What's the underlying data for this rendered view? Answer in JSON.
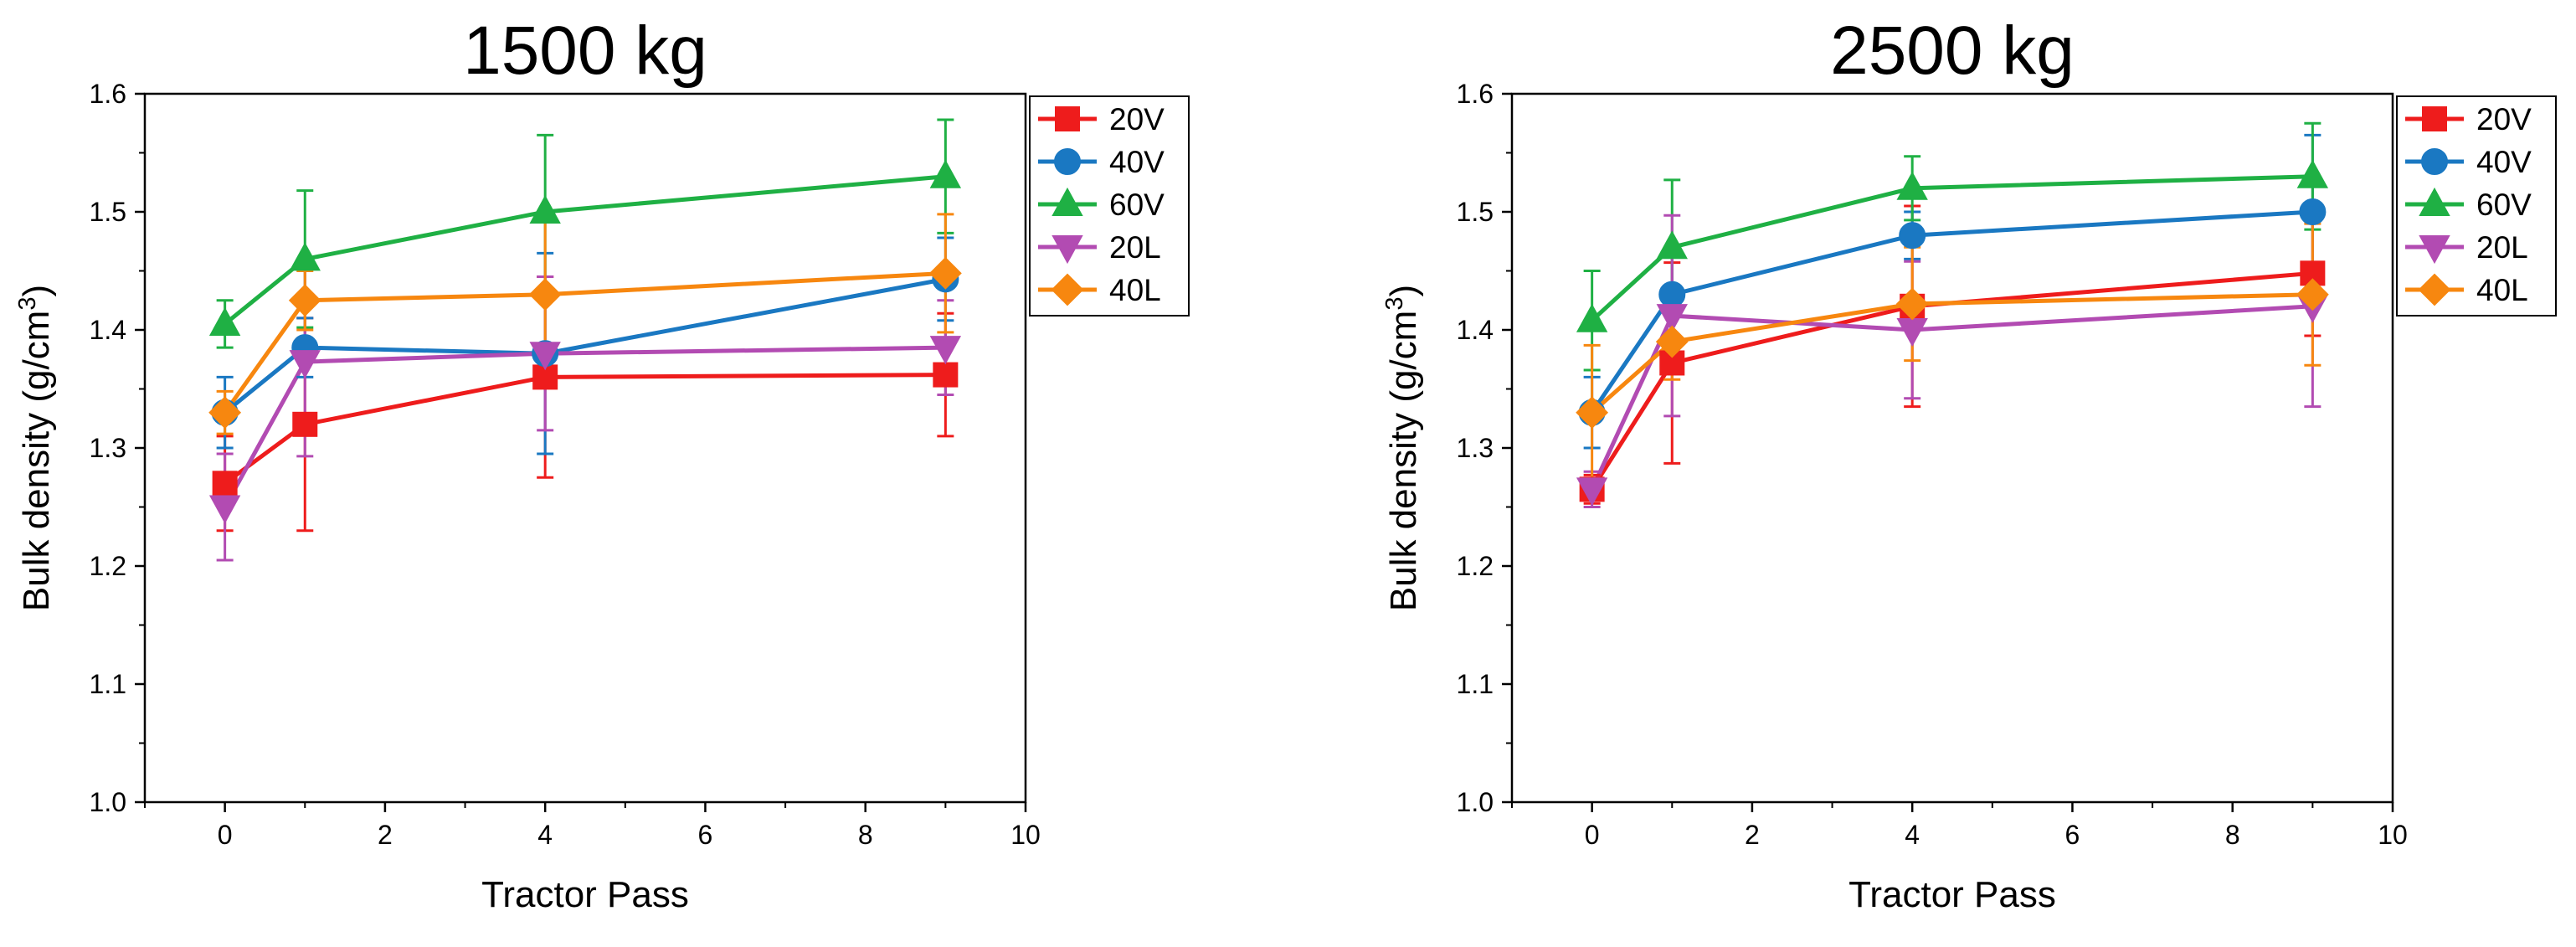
{
  "figure": {
    "name": "bulk-density-vs-tractor-pass"
  },
  "chart_data": [
    {
      "type": "line",
      "title": "1500 kg",
      "xlabel": "Tractor Pass",
      "ylabel_main": "Bulk density (g/cm",
      "ylabel_sup": "3",
      "ylabel_close": ")",
      "xlim": [
        -1,
        10
      ],
      "ylim": [
        1.0,
        1.6
      ],
      "xticks": [
        0,
        2,
        4,
        6,
        8,
        10
      ],
      "xtick_labels": [
        "0",
        "2",
        "4",
        "6",
        "8",
        "10"
      ],
      "yticks": [
        1.0,
        1.1,
        1.2,
        1.3,
        1.4,
        1.5,
        1.6
      ],
      "ytick_labels": [
        "1.0",
        "1.1",
        "1.2",
        "1.3",
        "1.4",
        "1.5",
        "1.6"
      ],
      "legend": "outside-top-right",
      "x": [
        0,
        1,
        4,
        9
      ],
      "series": [
        {
          "name": "20V",
          "color": "#ee1c1c",
          "marker": "square",
          "values": [
            1.27,
            1.32,
            1.36,
            1.362
          ],
          "errors": [
            0.04,
            0.09,
            0.085,
            0.052
          ]
        },
        {
          "name": "40V",
          "color": "#1a78c2",
          "marker": "circle",
          "values": [
            1.33,
            1.385,
            1.38,
            1.443
          ],
          "errors": [
            0.03,
            0.025,
            0.085,
            0.035
          ]
        },
        {
          "name": "60V",
          "color": "#1fb044",
          "marker": "triangle-up",
          "values": [
            1.405,
            1.46,
            1.5,
            1.53
          ],
          "errors": [
            0.02,
            0.058,
            0.065,
            0.048
          ]
        },
        {
          "name": "20L",
          "color": "#b24bb2",
          "marker": "triangle-down",
          "values": [
            1.25,
            1.373,
            1.38,
            1.385
          ],
          "errors": [
            0.045,
            0.08,
            0.065,
            0.04
          ]
        },
        {
          "name": "40L",
          "color": "#f7870f",
          "marker": "diamond",
          "values": [
            1.33,
            1.425,
            1.43,
            1.448
          ],
          "errors": [
            0.018,
            0.025,
            0.065,
            0.05
          ]
        }
      ]
    },
    {
      "type": "line",
      "title": "2500 kg",
      "xlabel": "Tractor Pass",
      "ylabel_main": "Bulk density (g/cm",
      "ylabel_sup": "3",
      "ylabel_close": ")",
      "xlim": [
        -1,
        10
      ],
      "ylim": [
        1.0,
        1.6
      ],
      "xticks": [
        0,
        2,
        4,
        6,
        8,
        10
      ],
      "xtick_labels": [
        "0",
        "2",
        "4",
        "6",
        "8",
        "10"
      ],
      "yticks": [
        1.0,
        1.1,
        1.2,
        1.3,
        1.4,
        1.5,
        1.6
      ],
      "ytick_labels": [
        "1.0",
        "1.1",
        "1.2",
        "1.3",
        "1.4",
        "1.5",
        "1.6"
      ],
      "legend": "outside-top-right",
      "x": [
        0,
        1,
        4,
        9
      ],
      "series": [
        {
          "name": "20V",
          "color": "#ee1c1c",
          "marker": "square",
          "values": [
            1.265,
            1.372,
            1.42,
            1.448
          ],
          "errors": [
            0.012,
            0.085,
            0.085,
            0.053
          ]
        },
        {
          "name": "40V",
          "color": "#1a78c2",
          "marker": "circle",
          "values": [
            1.33,
            1.43,
            1.48,
            1.5
          ],
          "errors": [
            0.03,
            0.035,
            0.02,
            0.065
          ]
        },
        {
          "name": "60V",
          "color": "#1fb044",
          "marker": "triangle-up",
          "values": [
            1.408,
            1.47,
            1.52,
            1.53
          ],
          "errors": [
            0.042,
            0.057,
            0.027,
            0.045
          ]
        },
        {
          "name": "20L",
          "color": "#b24bb2",
          "marker": "triangle-down",
          "values": [
            1.265,
            1.412,
            1.4,
            1.42
          ],
          "errors": [
            0.015,
            0.085,
            0.058,
            0.085
          ]
        },
        {
          "name": "40L",
          "color": "#f7870f",
          "marker": "diamond",
          "values": [
            1.33,
            1.39,
            1.422,
            1.43
          ],
          "errors": [
            0.057,
            0.032,
            0.048,
            0.06
          ]
        }
      ]
    }
  ]
}
